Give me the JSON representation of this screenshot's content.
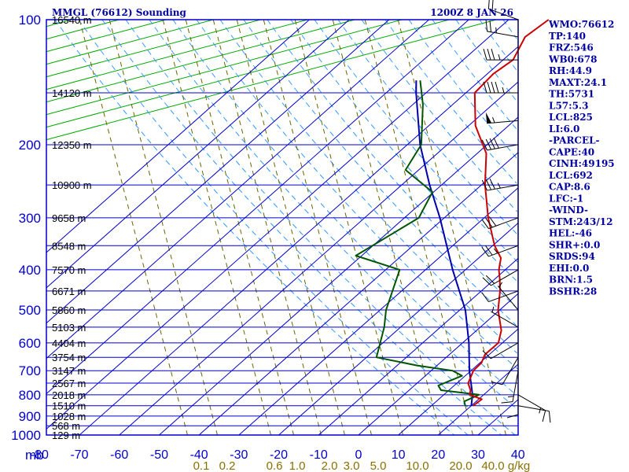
{
  "header": {
    "title": "MMGL (76612) Sounding",
    "valid_time": "1200Z  8 JAN 26"
  },
  "indices": [
    "WMO:76612",
    "TP:140",
    "FRZ:546",
    "WB0:678",
    "RH:44.9",
    "MAXT:24.1",
    "TH:5731",
    "L57:5.3",
    "LCL:825",
    "LI:6.0",
    "-PARCEL-",
    "CAPE:40",
    "CINH:49195",
    "LCL:692",
    "CAP:8.6",
    "LFC:-1",
    "-WIND-",
    "STM:243/12",
    "HEL:-46",
    "SHR+:0.0",
    "SRDS:94",
    "EHI:0.0",
    "BRN:1.5",
    "BSHR:28"
  ],
  "pressure_label_unit": "mb",
  "colors": {
    "grid": "#0000cc",
    "dry_adiabat": "#00aa00",
    "moist_adiabat": "#3399ff",
    "mixing_ratio": "#666600",
    "temperature": "#cc0000",
    "dewpoint": "#005500",
    "parcel": "#0000aa",
    "wind": "#000000",
    "text": "#0000a0",
    "mix_label": "#8a7000"
  },
  "chart_data": {
    "type": "skew-t log-p sounding",
    "title": "MMGL (76612) Sounding",
    "valid_time": "1200Z  8 JAN 26",
    "pressure_levels_mb": [
      100,
      200,
      300,
      400,
      500,
      600,
      700,
      800,
      900,
      1000
    ],
    "pressure_tick_labels": [
      "100",
      "200",
      "300",
      "400",
      "500",
      "600",
      "700",
      "800",
      "900",
      "1000"
    ],
    "temperature_ticks_c": [
      -80,
      -70,
      -60,
      -50,
      -40,
      -30,
      -20,
      -10,
      0,
      10,
      20,
      30,
      40
    ],
    "temperature_tick_labels": [
      "-80",
      "-70",
      "-60",
      "-50",
      "-40",
      "-30",
      "-20",
      "-10",
      "0",
      "10",
      "20",
      "30",
      "40"
    ],
    "mixing_ratio_labels": [
      "0.1",
      "0.2",
      "0.6",
      "1.0",
      "2.0",
      "3.0",
      "5.0",
      "10.0",
      "20.0",
      "40.0",
      "g/kg"
    ],
    "height_labels": [
      {
        "p": 100,
        "label": "16540 m"
      },
      {
        "p": 150,
        "label": "14120 m"
      },
      {
        "p": 200,
        "label": "12350 m"
      },
      {
        "p": 250,
        "label": "10900 m"
      },
      {
        "p": 300,
        "label": "9658 m"
      },
      {
        "p": 350,
        "label": "8548 m"
      },
      {
        "p": 400,
        "label": "7570 m"
      },
      {
        "p": 450,
        "label": "6671 m"
      },
      {
        "p": 500,
        "label": "5860 m"
      },
      {
        "p": 550,
        "label": "5103 m"
      },
      {
        "p": 600,
        "label": "4404 m"
      },
      {
        "p": 650,
        "label": "3754 m"
      },
      {
        "p": 700,
        "label": "3147 m"
      },
      {
        "p": 750,
        "label": "2567 m"
      },
      {
        "p": 800,
        "label": "2018 m"
      },
      {
        "p": 850,
        "label": "1510 m"
      },
      {
        "p": 900,
        "label": "1028 m"
      },
      {
        "p": 950,
        "label": "568 m"
      },
      {
        "p": 1000,
        "label": "129 m"
      }
    ],
    "temperature_profile": [
      {
        "p": 850,
        "t": 20.5
      },
      {
        "p": 820,
        "t": 20.8
      },
      {
        "p": 800,
        "t": 16.5
      },
      {
        "p": 780,
        "t": 15.4
      },
      {
        "p": 750,
        "t": 12.8
      },
      {
        "p": 720,
        "t": 11.5
      },
      {
        "p": 700,
        "t": 10.6
      },
      {
        "p": 670,
        "t": 10.4
      },
      {
        "p": 640,
        "t": 8.9
      },
      {
        "p": 600,
        "t": 9.0
      },
      {
        "p": 560,
        "t": 6.2
      },
      {
        "p": 500,
        "t": -0.4
      },
      {
        "p": 450,
        "t": -5.3
      },
      {
        "p": 420,
        "t": -8.9
      },
      {
        "p": 400,
        "t": -11.6
      },
      {
        "p": 375,
        "t": -14.4
      },
      {
        "p": 350,
        "t": -19.5
      },
      {
        "p": 300,
        "t": -29.0
      },
      {
        "p": 250,
        "t": -39.1
      },
      {
        "p": 210,
        "t": -47.7
      },
      {
        "p": 180,
        "t": -58.3
      },
      {
        "p": 150,
        "t": -67.8
      },
      {
        "p": 135,
        "t": -68.5
      },
      {
        "p": 125,
        "t": -67.5
      },
      {
        "p": 110,
        "t": -71.0
      },
      {
        "p": 100,
        "t": -70.0
      }
    ],
    "dewpoint_profile": [
      {
        "p": 850,
        "td": 18.5
      },
      {
        "p": 830,
        "td": 17.0
      },
      {
        "p": 800,
        "td": 18.8
      },
      {
        "p": 780,
        "td": 8.0
      },
      {
        "p": 760,
        "td": 6.0
      },
      {
        "p": 720,
        "td": 9.2
      },
      {
        "p": 700,
        "td": 5.4
      },
      {
        "p": 680,
        "td": -5.0
      },
      {
        "p": 650,
        "td": -17.5
      },
      {
        "p": 550,
        "td": -24.1
      },
      {
        "p": 500,
        "td": -28.5
      },
      {
        "p": 400,
        "td": -36.5
      },
      {
        "p": 370,
        "td": -51.5
      },
      {
        "p": 300,
        "td": -46.4
      },
      {
        "p": 260,
        "td": -50.3
      },
      {
        "p": 230,
        "td": -63.3
      },
      {
        "p": 200,
        "td": -66.5
      },
      {
        "p": 160,
        "td": -77.5
      },
      {
        "p": 140,
        "td": -85.0
      }
    ],
    "parcel_path": [
      {
        "p": 850,
        "t": 20.0
      },
      {
        "p": 800,
        "t": 17.2
      },
      {
        "p": 700,
        "t": 9.6
      },
      {
        "p": 600,
        "t": 1.6
      },
      {
        "p": 500,
        "t": -8.6
      },
      {
        "p": 400,
        "t": -23.2
      },
      {
        "p": 300,
        "t": -41.1
      },
      {
        "p": 250,
        "t": -53.0
      },
      {
        "p": 200,
        "t": -66.8
      },
      {
        "p": 150,
        "t": -82.5
      },
      {
        "p": 140,
        "t": -86.0
      }
    ],
    "winds": [
      {
        "p": 850,
        "dir": 100,
        "spd": 10
      },
      {
        "p": 800,
        "dir": 120,
        "spd": 15
      },
      {
        "p": 750,
        "dir": 180,
        "spd": 10
      },
      {
        "p": 700,
        "dir": 190,
        "spd": 15
      },
      {
        "p": 650,
        "dir": 210,
        "spd": 10
      },
      {
        "p": 600,
        "dir": 240,
        "spd": 10
      },
      {
        "p": 550,
        "dir": 300,
        "spd": 5
      },
      {
        "p": 500,
        "dir": 320,
        "spd": 5
      },
      {
        "p": 450,
        "dir": 250,
        "spd": 10
      },
      {
        "p": 400,
        "dir": 240,
        "spd": 20
      },
      {
        "p": 350,
        "dir": 250,
        "spd": 25
      },
      {
        "p": 300,
        "dir": 250,
        "spd": 30
      },
      {
        "p": 250,
        "dir": 260,
        "spd": 35
      },
      {
        "p": 200,
        "dir": 260,
        "spd": 40
      },
      {
        "p": 175,
        "dir": 265,
        "spd": 55
      },
      {
        "p": 150,
        "dir": 270,
        "spd": 45
      },
      {
        "p": 125,
        "dir": 270,
        "spd": 35
      },
      {
        "p": 110,
        "dir": 280,
        "spd": 25
      },
      {
        "p": 100,
        "dir": 290,
        "spd": 20
      }
    ],
    "grid": true,
    "legend": "none"
  }
}
